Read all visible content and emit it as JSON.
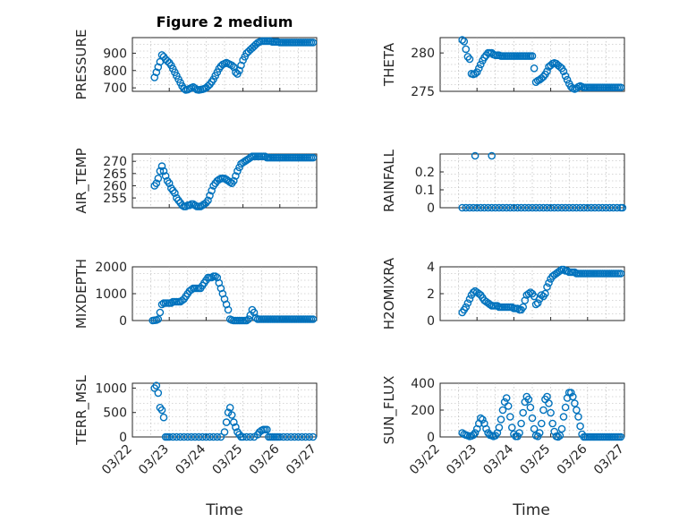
{
  "figure": {
    "title": "Figure 2 medium",
    "x_tick_labels": [
      "03/22",
      "03/23",
      "03/24",
      "03/25",
      "03/26",
      "03/27"
    ],
    "xlabel": "Time",
    "marker_color": "#0072BD"
  },
  "chart_data": [
    {
      "type": "scatter",
      "title": "Figure 2 medium",
      "ylabel": "PRESSURE",
      "xlim": [
        0,
        5
      ],
      "ylim": [
        680,
        990
      ],
      "yticks": [
        700,
        800,
        900
      ],
      "x": [
        0.6,
        0.65,
        0.7,
        0.75,
        0.8,
        0.85,
        0.9,
        0.95,
        1.0,
        1.05,
        1.1,
        1.15,
        1.2,
        1.25,
        1.3,
        1.35,
        1.4,
        1.45,
        1.5,
        1.55,
        1.6,
        1.65,
        1.7,
        1.75,
        1.8,
        1.85,
        1.9,
        1.95,
        2.0,
        2.05,
        2.1,
        2.15,
        2.2,
        2.25,
        2.3,
        2.35,
        2.4,
        2.45,
        2.5,
        2.55,
        2.6,
        2.65,
        2.7,
        2.75,
        2.8,
        2.85,
        2.9,
        2.95,
        3.0,
        3.05,
        3.1,
        3.15,
        3.2,
        3.25,
        3.3,
        3.35,
        3.4,
        3.45,
        3.5,
        3.55,
        3.6,
        3.65,
        3.7,
        3.75,
        3.8,
        3.85,
        3.9,
        3.95,
        4.0,
        4.05,
        4.1,
        4.15,
        4.2,
        4.25,
        4.3,
        4.35,
        4.4,
        4.45,
        4.5,
        4.55,
        4.6,
        4.65,
        4.7,
        4.75,
        4.8,
        4.85,
        4.9
      ],
      "y": [
        760,
        790,
        820,
        850,
        890,
        880,
        865,
        855,
        845,
        830,
        810,
        790,
        770,
        750,
        730,
        710,
        695,
        688,
        690,
        695,
        700,
        705,
        698,
        690,
        688,
        690,
        692,
        695,
        700,
        710,
        720,
        735,
        750,
        770,
        790,
        810,
        825,
        835,
        840,
        845,
        840,
        835,
        830,
        820,
        790,
        780,
        800,
        830,
        860,
        880,
        900,
        910,
        920,
        930,
        940,
        950,
        960,
        965,
        970,
        970,
        970,
        970,
        970,
        970,
        965,
        965,
        965,
        965,
        962,
        962,
        962,
        962,
        962,
        962,
        962,
        962,
        962,
        962,
        962,
        962,
        962,
        962,
        962,
        962,
        962,
        962,
        962
      ],
      "_note": ""
    },
    {
      "type": "scatter",
      "ylabel": "THETA",
      "xlim": [
        0,
        5
      ],
      "ylim": [
        275,
        282
      ],
      "yticks": [
        275,
        280
      ],
      "x": [
        0.6,
        0.65,
        0.7,
        0.75,
        0.8,
        0.85,
        0.9,
        0.95,
        1.0,
        1.05,
        1.1,
        1.15,
        1.2,
        1.25,
        1.3,
        1.35,
        1.4,
        1.45,
        1.5,
        1.55,
        1.6,
        1.65,
        1.7,
        1.75,
        1.8,
        1.85,
        1.9,
        1.95,
        2.0,
        2.05,
        2.1,
        2.15,
        2.2,
        2.25,
        2.3,
        2.35,
        2.4,
        2.45,
        2.5,
        2.55,
        2.6,
        2.65,
        2.7,
        2.75,
        2.8,
        2.85,
        2.9,
        2.95,
        3.0,
        3.05,
        3.1,
        3.15,
        3.2,
        3.25,
        3.3,
        3.35,
        3.4,
        3.45,
        3.5,
        3.55,
        3.6,
        3.65,
        3.7,
        3.75,
        3.8,
        3.85,
        3.9,
        3.95,
        4.0,
        4.05,
        4.1,
        4.15,
        4.2,
        4.25,
        4.3,
        4.35,
        4.4,
        4.45,
        4.5,
        4.55,
        4.6,
        4.65,
        4.7,
        4.75,
        4.8,
        4.85,
        4.9
      ],
      "y": [
        281.7,
        281.5,
        280.5,
        279.5,
        279.2,
        277.3,
        277.2,
        277.3,
        277.5,
        278.0,
        278.5,
        279.0,
        279.4,
        279.7,
        280.0,
        280.0,
        280.0,
        279.8,
        279.7,
        279.7,
        279.7,
        279.6,
        279.6,
        279.6,
        279.6,
        279.6,
        279.6,
        279.6,
        279.6,
        279.6,
        279.6,
        279.6,
        279.6,
        279.6,
        279.6,
        279.6,
        279.6,
        279.6,
        279.6,
        278.0,
        276.2,
        276.4,
        276.5,
        276.7,
        276.9,
        277.2,
        277.6,
        278.2,
        278.4,
        278.6,
        278.7,
        278.6,
        278.4,
        278.2,
        278.0,
        277.6,
        277.0,
        276.5,
        276.0,
        275.6,
        275.4,
        275.3,
        275.4,
        275.6,
        275.7,
        275.6,
        275.5,
        275.5,
        275.5,
        275.5,
        275.5,
        275.5,
        275.5,
        275.5,
        275.5,
        275.5,
        275.5,
        275.5,
        275.5,
        275.5,
        275.5,
        275.5,
        275.5,
        275.5,
        275.5,
        275.5,
        275.5
      ]
    },
    {
      "type": "scatter",
      "ylabel": "AIR_TEMP",
      "xlim": [
        0,
        5
      ],
      "ylim": [
        251,
        273
      ],
      "yticks": [
        255,
        260,
        265,
        270
      ],
      "x": [
        0.6,
        0.65,
        0.7,
        0.75,
        0.8,
        0.85,
        0.9,
        0.95,
        1.0,
        1.05,
        1.1,
        1.15,
        1.2,
        1.25,
        1.3,
        1.35,
        1.4,
        1.45,
        1.5,
        1.55,
        1.6,
        1.65,
        1.7,
        1.75,
        1.8,
        1.85,
        1.9,
        1.95,
        2.0,
        2.05,
        2.1,
        2.15,
        2.2,
        2.25,
        2.3,
        2.35,
        2.4,
        2.45,
        2.5,
        2.55,
        2.6,
        2.65,
        2.7,
        2.75,
        2.8,
        2.85,
        2.9,
        2.95,
        3.0,
        3.05,
        3.1,
        3.15,
        3.2,
        3.25,
        3.3,
        3.35,
        3.4,
        3.45,
        3.5,
        3.55,
        3.6,
        3.65,
        3.7,
        3.75,
        3.8,
        3.85,
        3.9,
        3.95,
        4.0,
        4.05,
        4.1,
        4.15,
        4.2,
        4.25,
        4.3,
        4.35,
        4.4,
        4.45,
        4.5,
        4.55,
        4.6,
        4.65,
        4.7,
        4.75,
        4.8,
        4.85,
        4.9
      ],
      "y": [
        260,
        261,
        263,
        266,
        268,
        266,
        264,
        262,
        261,
        259,
        258,
        257,
        255,
        254,
        253,
        252,
        251.5,
        251.5,
        252,
        252,
        252.5,
        252.5,
        252,
        251.5,
        251.5,
        251.5,
        252,
        252.5,
        253,
        254,
        256,
        258,
        260,
        261,
        262,
        262.5,
        263,
        263,
        263,
        262.5,
        262,
        261.5,
        261,
        262,
        264,
        266,
        267.5,
        269,
        269.5,
        270,
        270.5,
        271,
        271.5,
        272,
        272,
        272,
        272,
        272,
        272,
        272,
        272,
        271.5,
        271.5,
        271.5,
        271.5,
        271.5,
        271.5,
        271.5,
        271.5,
        271.5,
        271.5,
        271.5,
        271.5,
        271.5,
        271.5,
        271.5,
        271.5,
        271.5,
        271.5,
        271.5,
        271.5,
        271.5,
        271.5,
        271.5,
        271.5,
        271.5,
        271.5
      ]
    },
    {
      "type": "scatter",
      "ylabel": "RAINFALL",
      "xlim": [
        0,
        5
      ],
      "ylim": [
        0,
        0.3
      ],
      "yticks": [
        0,
        0.1,
        0.2
      ],
      "x": [
        0.6,
        0.7,
        0.8,
        0.9,
        1.0,
        1.1,
        1.2,
        1.3,
        1.4,
        1.5,
        1.6,
        1.7,
        1.8,
        1.9,
        2.0,
        2.1,
        2.2,
        2.3,
        2.4,
        2.5,
        2.6,
        2.7,
        2.8,
        2.9,
        3.0,
        3.1,
        3.2,
        3.3,
        3.4,
        3.5,
        3.6,
        3.7,
        3.8,
        3.9,
        4.0,
        4.1,
        4.2,
        4.3,
        4.4,
        4.5,
        4.6,
        4.7,
        4.8,
        4.9,
        4.95,
        0.95,
        1.4
      ],
      "y": [
        0,
        0,
        0,
        0,
        0,
        0,
        0,
        0,
        0,
        0,
        0,
        0,
        0,
        0,
        0,
        0,
        0,
        0,
        0,
        0,
        0,
        0,
        0,
        0,
        0,
        0,
        0,
        0,
        0,
        0,
        0,
        0,
        0,
        0,
        0,
        0,
        0,
        0,
        0,
        0,
        0,
        0,
        0,
        0,
        0,
        0.29,
        0.29
      ]
    },
    {
      "type": "scatter",
      "ylabel": "MIXDEPTH",
      "xlim": [
        0,
        5
      ],
      "ylim": [
        0,
        2000
      ],
      "yticks": [
        0,
        1000,
        2000
      ],
      "x": [
        0.55,
        0.6,
        0.65,
        0.7,
        0.75,
        0.8,
        0.85,
        0.9,
        0.95,
        1.0,
        1.05,
        1.1,
        1.15,
        1.2,
        1.25,
        1.3,
        1.35,
        1.4,
        1.45,
        1.5,
        1.55,
        1.6,
        1.65,
        1.7,
        1.75,
        1.8,
        1.85,
        1.9,
        1.95,
        2.0,
        2.05,
        2.1,
        2.15,
        2.2,
        2.25,
        2.3,
        2.35,
        2.4,
        2.45,
        2.5,
        2.55,
        2.6,
        2.65,
        2.7,
        2.75,
        2.8,
        2.85,
        2.9,
        2.95,
        3.0,
        3.05,
        3.1,
        3.15,
        3.2,
        3.25,
        3.3,
        3.35,
        3.4,
        3.45,
        3.5,
        3.55,
        3.6,
        3.65,
        3.7,
        3.75,
        3.8,
        3.85,
        3.9,
        3.95,
        4.0,
        4.05,
        4.1,
        4.15,
        4.2,
        4.25,
        4.3,
        4.35,
        4.4,
        4.45,
        4.5,
        4.55,
        4.6,
        4.65,
        4.7,
        4.75,
        4.8,
        4.85,
        4.9
      ],
      "y": [
        0,
        10,
        20,
        50,
        300,
        600,
        650,
        650,
        650,
        650,
        650,
        700,
        700,
        700,
        700,
        700,
        750,
        800,
        900,
        1000,
        1100,
        1150,
        1200,
        1200,
        1200,
        1200,
        1200,
        1300,
        1400,
        1500,
        1600,
        1600,
        1600,
        1650,
        1650,
        1600,
        1400,
        1200,
        1000,
        800,
        600,
        400,
        50,
        20,
        0,
        0,
        0,
        0,
        0,
        0,
        0,
        0,
        50,
        200,
        400,
        300,
        100,
        50,
        50,
        50,
        50,
        50,
        50,
        50,
        50,
        50,
        50,
        50,
        50,
        50,
        50,
        50,
        50,
        50,
        50,
        50,
        50,
        50,
        50,
        50,
        50,
        50,
        50,
        50,
        50,
        50,
        50,
        50
      ]
    },
    {
      "type": "scatter",
      "ylabel": "H2OMIXRA",
      "xlim": [
        0,
        5
      ],
      "ylim": [
        0,
        4
      ],
      "yticks": [
        0,
        2,
        4
      ],
      "x": [
        0.6,
        0.65,
        0.7,
        0.75,
        0.8,
        0.85,
        0.9,
        0.95,
        1.0,
        1.05,
        1.1,
        1.15,
        1.2,
        1.25,
        1.3,
        1.35,
        1.4,
        1.45,
        1.5,
        1.55,
        1.6,
        1.65,
        1.7,
        1.75,
        1.8,
        1.85,
        1.9,
        1.95,
        2.0,
        2.05,
        2.1,
        2.15,
        2.2,
        2.25,
        2.3,
        2.35,
        2.4,
        2.45,
        2.5,
        2.55,
        2.6,
        2.65,
        2.7,
        2.75,
        2.8,
        2.85,
        2.9,
        2.95,
        3.0,
        3.05,
        3.1,
        3.15,
        3.2,
        3.25,
        3.3,
        3.35,
        3.4,
        3.45,
        3.5,
        3.55,
        3.6,
        3.65,
        3.7,
        3.75,
        3.8,
        3.85,
        3.9,
        3.95,
        4.0,
        4.05,
        4.1,
        4.15,
        4.2,
        4.25,
        4.3,
        4.35,
        4.4,
        4.45,
        4.5,
        4.55,
        4.6,
        4.65,
        4.7,
        4.75,
        4.8,
        4.85,
        4.9
      ],
      "y": [
        0.6,
        0.8,
        1.0,
        1.3,
        1.6,
        1.9,
        2.1,
        2.2,
        2.1,
        2.0,
        1.9,
        1.7,
        1.5,
        1.4,
        1.3,
        1.2,
        1.1,
        1.1,
        1.1,
        1.1,
        1.0,
        1.0,
        1.0,
        1.0,
        1.0,
        1.0,
        1.0,
        1.0,
        0.9,
        0.9,
        0.9,
        0.8,
        0.8,
        1.0,
        1.5,
        1.9,
        2.0,
        2.1,
        2.0,
        1.8,
        1.2,
        1.3,
        1.6,
        1.9,
        1.8,
        2.0,
        2.5,
        2.8,
        3.1,
        3.3,
        3.4,
        3.5,
        3.6,
        3.7,
        3.8,
        3.8,
        3.7,
        3.7,
        3.6,
        3.6,
        3.6,
        3.6,
        3.5,
        3.5,
        3.5,
        3.5,
        3.5,
        3.5,
        3.5,
        3.5,
        3.5,
        3.5,
        3.5,
        3.5,
        3.5,
        3.5,
        3.5,
        3.5,
        3.5,
        3.5,
        3.5,
        3.5,
        3.5,
        3.5,
        3.5,
        3.5,
        3.5
      ]
    },
    {
      "type": "scatter",
      "ylabel": "TERR_MSL",
      "xlim": [
        0,
        5
      ],
      "ylim": [
        0,
        1100
      ],
      "yticks": [
        0,
        500,
        1000
      ],
      "x": [
        0.6,
        0.65,
        0.7,
        0.75,
        0.8,
        0.85,
        0.9,
        0.95,
        1.0,
        1.1,
        1.2,
        1.3,
        1.4,
        1.5,
        1.6,
        1.7,
        1.8,
        1.9,
        2.0,
        2.1,
        2.2,
        2.3,
        2.4,
        2.5,
        2.55,
        2.6,
        2.65,
        2.7,
        2.75,
        2.8,
        2.85,
        2.9,
        2.95,
        3.0,
        3.1,
        3.2,
        3.3,
        3.4,
        3.45,
        3.5,
        3.55,
        3.6,
        3.65,
        3.7,
        3.75,
        3.8,
        3.85,
        3.9,
        3.95,
        4.0,
        4.1,
        4.2,
        4.3,
        4.4,
        4.5,
        4.6,
        4.7,
        4.8,
        4.9
      ],
      "y": [
        1000,
        1050,
        900,
        600,
        550,
        400,
        0,
        0,
        0,
        0,
        0,
        0,
        0,
        0,
        0,
        0,
        0,
        0,
        0,
        0,
        0,
        0,
        0,
        100,
        300,
        500,
        600,
        450,
        300,
        200,
        100,
        50,
        0,
        0,
        0,
        0,
        0,
        50,
        100,
        130,
        150,
        150,
        150,
        0,
        0,
        0,
        0,
        0,
        0,
        0,
        0,
        0,
        0,
        0,
        0,
        0,
        0,
        0,
        0
      ]
    },
    {
      "type": "scatter",
      "ylabel": "SUN_FLUX",
      "xlim": [
        0,
        5
      ],
      "ylim": [
        0,
        400
      ],
      "yticks": [
        0,
        200,
        400
      ],
      "x": [
        0.6,
        0.65,
        0.7,
        0.75,
        0.8,
        0.85,
        0.9,
        0.95,
        1.0,
        1.05,
        1.1,
        1.15,
        1.2,
        1.25,
        1.3,
        1.35,
        1.4,
        1.45,
        1.5,
        1.55,
        1.6,
        1.65,
        1.7,
        1.75,
        1.8,
        1.85,
        1.9,
        1.95,
        2.0,
        2.05,
        2.1,
        2.15,
        2.2,
        2.25,
        2.3,
        2.35,
        2.4,
        2.45,
        2.5,
        2.55,
        2.6,
        2.65,
        2.7,
        2.75,
        2.8,
        2.85,
        2.9,
        2.95,
        3.0,
        3.05,
        3.1,
        3.15,
        3.2,
        3.25,
        3.3,
        3.35,
        3.4,
        3.45,
        3.5,
        3.55,
        3.6,
        3.65,
        3.7,
        3.75,
        3.8,
        3.85,
        3.9,
        3.95,
        4.0,
        4.05,
        4.1,
        4.15,
        4.2,
        4.25,
        4.3,
        4.35,
        4.4,
        4.45,
        4.5,
        4.55,
        4.6,
        4.65,
        4.7,
        4.75,
        4.8,
        4.85,
        4.9
      ],
      "y": [
        30,
        20,
        15,
        10,
        5,
        8,
        15,
        30,
        60,
        100,
        140,
        130,
        100,
        60,
        30,
        15,
        10,
        5,
        10,
        30,
        70,
        130,
        200,
        260,
        290,
        230,
        150,
        70,
        20,
        5,
        5,
        30,
        100,
        180,
        260,
        300,
        280,
        220,
        140,
        60,
        10,
        5,
        30,
        100,
        200,
        280,
        300,
        250,
        180,
        100,
        40,
        5,
        0,
        10,
        60,
        150,
        220,
        290,
        330,
        330,
        300,
        250,
        200,
        150,
        80,
        20,
        0,
        0,
        0,
        0,
        0,
        0,
        0,
        0,
        0,
        0,
        0,
        0,
        0,
        0,
        0,
        0,
        0,
        0,
        0,
        0,
        0
      ]
    }
  ]
}
